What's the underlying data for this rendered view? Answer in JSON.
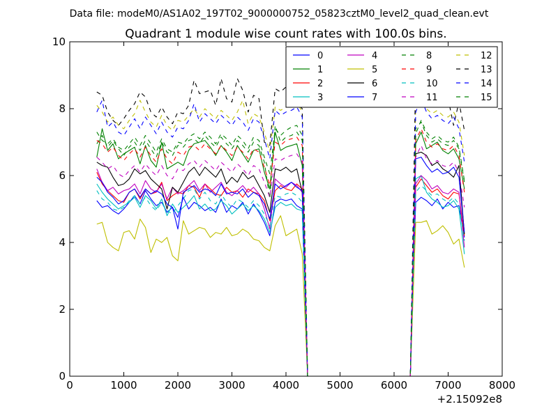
{
  "chart_data": {
    "type": "line",
    "suptitle": "Data file: modeM0/AS1A02_197T02_9000000752_05823cztM0_level2_quad_clean.evt",
    "title": "Quadrant 1 module wise count rates with 100.0s bins.",
    "xlabel": "",
    "ylabel": "",
    "x_offset_label": "+2.15092e8",
    "xlim": [
      0,
      8000
    ],
    "ylim": [
      0,
      10
    ],
    "xticks": [
      0,
      1000,
      2000,
      3000,
      4000,
      5000,
      6000,
      7000,
      8000
    ],
    "xtick_labels": [
      "0",
      "1000",
      "2000",
      "3000",
      "4000",
      "5000",
      "6000",
      "7000",
      "8000"
    ],
    "yticks": [
      0,
      2,
      4,
      6,
      8,
      10
    ],
    "ytick_labels": [
      "0",
      "2",
      "4",
      "6",
      "8",
      "10"
    ],
    "legend_position": "top-right",
    "x": [
      500,
      600,
      700,
      800,
      900,
      1000,
      1100,
      1200,
      1300,
      1400,
      1500,
      1600,
      1700,
      1800,
      1900,
      2000,
      2100,
      2200,
      2300,
      2400,
      2500,
      2600,
      2700,
      2800,
      2900,
      3000,
      3100,
      3200,
      3300,
      3400,
      3500,
      3600,
      3700,
      3800,
      3900,
      4000,
      4100,
      4200,
      4300,
      4400,
      4450,
      6250,
      6300,
      6400,
      6500,
      6600,
      6700,
      6800,
      6900,
      7000,
      7100,
      7200,
      7300
    ],
    "series": [
      {
        "name": "0",
        "color": "#0000ff",
        "dash": "solid",
        "values": [
          5.25,
          5.05,
          5.1,
          4.95,
          4.85,
          5.0,
          5.2,
          5.4,
          5.15,
          5.55,
          5.3,
          5.1,
          5.2,
          4.9,
          5.05,
          4.75,
          5.35,
          5.0,
          5.2,
          5.1,
          4.95,
          5.05,
          4.9,
          5.3,
          4.9,
          5.1,
          5.0,
          5.2,
          4.85,
          5.15,
          4.9,
          4.6,
          4.2,
          5.2,
          5.3,
          5.25,
          5.3,
          5.1,
          5.0,
          0.0,
          0.0,
          0.0,
          0.0,
          5.2,
          5.35,
          5.25,
          5.1,
          5.3,
          5.0,
          5.2,
          5.05,
          5.1,
          4.15
        ]
      },
      {
        "name": "1",
        "color": "#008000",
        "dash": "solid",
        "values": [
          6.55,
          7.4,
          6.75,
          6.95,
          6.5,
          6.65,
          6.75,
          6.85,
          6.35,
          6.9,
          6.45,
          6.25,
          7.0,
          6.2,
          6.3,
          6.4,
          6.3,
          6.75,
          6.95,
          7.0,
          7.05,
          6.85,
          6.6,
          6.9,
          6.7,
          6.45,
          6.9,
          6.65,
          6.4,
          6.75,
          6.8,
          6.1,
          5.6,
          7.3,
          6.75,
          6.85,
          6.9,
          6.95,
          6.3,
          0.0,
          0.0,
          0.0,
          0.0,
          6.95,
          7.3,
          6.8,
          6.9,
          7.0,
          6.75,
          6.65,
          6.8,
          6.5,
          5.6
        ]
      },
      {
        "name": "2",
        "color": "#ff0000",
        "dash": "solid",
        "values": [
          6.1,
          5.75,
          5.55,
          5.4,
          5.25,
          5.2,
          5.5,
          5.6,
          5.3,
          5.6,
          5.45,
          5.5,
          5.8,
          5.25,
          5.4,
          5.5,
          5.45,
          5.7,
          5.65,
          5.35,
          5.75,
          5.6,
          5.45,
          5.4,
          5.65,
          5.5,
          5.55,
          5.35,
          5.6,
          5.5,
          5.45,
          5.25,
          4.65,
          5.55,
          5.7,
          5.6,
          5.55,
          5.75,
          5.6,
          0.0,
          0.0,
          0.0,
          0.0,
          5.65,
          5.9,
          5.7,
          5.5,
          5.6,
          5.4,
          5.3,
          5.5,
          5.45,
          4.2
        ]
      },
      {
        "name": "3",
        "color": "#00bfbf",
        "dash": "solid",
        "values": [
          5.75,
          5.5,
          5.3,
          5.15,
          5.0,
          5.1,
          5.2,
          5.35,
          5.05,
          5.4,
          5.25,
          5.0,
          5.3,
          4.8,
          5.15,
          4.9,
          5.05,
          5.2,
          5.4,
          5.0,
          5.15,
          4.95,
          5.0,
          5.25,
          5.1,
          4.85,
          5.0,
          5.15,
          4.95,
          5.1,
          4.95,
          4.7,
          4.3,
          5.05,
          5.2,
          5.1,
          5.15,
          5.0,
          4.95,
          0.0,
          0.0,
          0.0,
          0.0,
          5.9,
          6.0,
          5.5,
          5.3,
          5.2,
          5.05,
          5.1,
          5.25,
          5.0,
          3.65
        ]
      },
      {
        "name": "4",
        "color": "#bf00bf",
        "dash": "solid",
        "values": [
          6.2,
          5.8,
          5.55,
          5.65,
          5.45,
          5.55,
          5.6,
          5.75,
          5.45,
          5.85,
          5.6,
          5.5,
          5.75,
          5.3,
          5.65,
          5.45,
          5.55,
          5.7,
          5.85,
          5.55,
          5.75,
          5.5,
          5.65,
          5.8,
          5.5,
          5.4,
          5.55,
          5.7,
          5.5,
          5.65,
          5.45,
          5.0,
          4.4,
          5.9,
          5.75,
          5.65,
          5.8,
          5.7,
          5.5,
          0.0,
          0.0,
          0.0,
          0.0,
          5.75,
          6.0,
          5.85,
          5.6,
          5.7,
          5.5,
          5.45,
          5.6,
          5.5,
          3.85
        ]
      },
      {
        "name": "5",
        "color": "#bfbf00",
        "dash": "solid",
        "values": [
          4.55,
          4.6,
          4.0,
          3.85,
          3.75,
          4.3,
          4.35,
          4.1,
          4.7,
          4.45,
          3.7,
          4.1,
          4.0,
          4.15,
          3.6,
          3.45,
          4.65,
          4.25,
          4.35,
          4.45,
          4.4,
          4.15,
          4.3,
          4.25,
          4.45,
          4.2,
          4.25,
          4.4,
          4.3,
          4.1,
          4.05,
          3.85,
          3.75,
          4.5,
          4.8,
          4.2,
          4.3,
          4.4,
          3.65,
          0.0,
          0.0,
          0.0,
          0.0,
          4.6,
          4.6,
          4.65,
          4.25,
          4.35,
          4.5,
          4.3,
          3.95,
          4.1,
          3.25
        ]
      },
      {
        "name": "6",
        "color": "#000000",
        "dash": "solid",
        "values": [
          6.4,
          6.3,
          6.25,
          5.95,
          5.7,
          5.75,
          5.9,
          6.2,
          6.05,
          6.15,
          5.9,
          5.75,
          5.6,
          5.0,
          5.65,
          5.5,
          5.8,
          6.1,
          6.25,
          6.0,
          6.25,
          6.1,
          5.95,
          6.2,
          5.75,
          5.95,
          5.8,
          6.1,
          5.9,
          6.0,
          5.7,
          5.4,
          4.9,
          6.2,
          6.15,
          6.25,
          6.1,
          6.2,
          5.5,
          0.0,
          0.0,
          0.0,
          0.0,
          6.65,
          6.7,
          6.6,
          6.3,
          6.4,
          6.2,
          6.1,
          5.95,
          6.3,
          4.25
        ]
      },
      {
        "name": "7",
        "color": "#0000ff",
        "dash": "solid",
        "values": [
          5.95,
          5.8,
          5.5,
          5.35,
          5.15,
          5.25,
          5.5,
          5.6,
          5.35,
          5.6,
          5.45,
          5.55,
          5.45,
          5.15,
          5.05,
          4.4,
          5.5,
          5.6,
          5.7,
          5.5,
          5.6,
          5.55,
          5.4,
          5.75,
          5.45,
          5.5,
          5.45,
          5.6,
          5.35,
          5.5,
          5.4,
          5.15,
          4.7,
          5.75,
          5.6,
          5.7,
          5.8,
          5.65,
          5.55,
          0.0,
          0.0,
          0.0,
          0.0,
          6.5,
          6.55,
          6.3,
          6.1,
          6.2,
          6.05,
          6.1,
          6.25,
          5.95,
          4.3
        ]
      },
      {
        "name": "8",
        "color": "#008000",
        "dash": "dashed",
        "values": [
          6.95,
          7.2,
          6.85,
          7.05,
          6.8,
          6.6,
          6.85,
          7.0,
          6.75,
          7.05,
          6.8,
          6.55,
          7.0,
          6.7,
          6.6,
          6.9,
          6.85,
          7.05,
          7.1,
          6.95,
          7.2,
          7.0,
          6.85,
          7.15,
          6.95,
          6.8,
          7.05,
          6.9,
          6.7,
          7.0,
          6.9,
          6.4,
          5.3,
          7.5,
          7.0,
          7.15,
          7.2,
          7.3,
          7.05,
          0.0,
          0.0,
          0.0,
          0.0,
          7.4,
          7.6,
          7.2,
          7.0,
          7.1,
          6.95,
          6.9,
          7.05,
          6.8,
          5.8
        ]
      },
      {
        "name": "9",
        "color": "#ff0000",
        "dash": "dashed",
        "values": [
          7.05,
          6.95,
          6.7,
          6.85,
          6.6,
          6.45,
          6.65,
          6.8,
          6.55,
          6.85,
          6.6,
          6.4,
          6.8,
          6.5,
          6.35,
          6.7,
          6.6,
          6.85,
          6.9,
          6.75,
          6.95,
          6.8,
          6.65,
          6.9,
          6.75,
          6.6,
          6.85,
          6.7,
          6.5,
          6.8,
          6.7,
          6.25,
          5.7,
          7.0,
          6.9,
          7.05,
          7.1,
          7.15,
          6.9,
          0.0,
          0.0,
          0.0,
          0.0,
          7.05,
          7.4,
          7.0,
          6.85,
          6.95,
          6.8,
          6.75,
          6.9,
          6.6,
          5.5
        ]
      },
      {
        "name": "10",
        "color": "#00bfbf",
        "dash": "dashed",
        "values": [
          5.55,
          5.3,
          5.2,
          5.0,
          4.95,
          5.05,
          5.25,
          5.4,
          5.15,
          5.35,
          5.1,
          4.95,
          5.2,
          4.95,
          4.85,
          5.1,
          5.3,
          5.55,
          5.6,
          5.3,
          5.5,
          5.25,
          5.15,
          5.45,
          5.2,
          5.05,
          5.3,
          5.2,
          5.05,
          5.25,
          5.1,
          4.85,
          4.5,
          5.4,
          5.35,
          5.45,
          5.5,
          5.4,
          5.2,
          0.0,
          0.0,
          0.0,
          0.0,
          5.5,
          5.7,
          5.55,
          5.4,
          5.45,
          5.3,
          5.2,
          5.35,
          5.15,
          4.05
        ]
      },
      {
        "name": "11",
        "color": "#bf00bf",
        "dash": "dashed",
        "values": [
          6.55,
          6.4,
          6.2,
          6.3,
          6.05,
          5.95,
          6.15,
          6.3,
          6.1,
          6.35,
          6.15,
          6.0,
          6.3,
          6.0,
          5.9,
          6.2,
          6.15,
          6.35,
          6.45,
          6.25,
          6.45,
          6.3,
          6.15,
          6.4,
          6.25,
          6.1,
          6.35,
          6.2,
          6.0,
          6.3,
          6.2,
          5.8,
          5.35,
          6.5,
          6.45,
          6.55,
          6.6,
          6.65,
          6.4,
          0.0,
          0.0,
          0.0,
          0.0,
          6.55,
          6.9,
          6.5,
          6.35,
          6.45,
          6.3,
          6.25,
          6.4,
          6.1,
          5.05
        ]
      },
      {
        "name": "12",
        "color": "#bfbf00",
        "dash": "dashed",
        "values": [
          8.1,
          7.9,
          7.6,
          7.75,
          7.5,
          7.4,
          7.65,
          7.85,
          8.25,
          7.9,
          7.6,
          7.45,
          7.8,
          7.5,
          7.35,
          7.65,
          7.6,
          7.8,
          8.0,
          7.75,
          8.0,
          7.85,
          7.7,
          7.95,
          7.8,
          7.65,
          7.9,
          8.25,
          7.55,
          7.85,
          7.75,
          7.3,
          6.7,
          8.05,
          7.95,
          8.05,
          8.1,
          8.2,
          7.9,
          0.0,
          0.0,
          0.0,
          0.0,
          8.05,
          8.5,
          8.0,
          7.85,
          7.95,
          7.8,
          7.75,
          7.9,
          7.6,
          6.6
        ]
      },
      {
        "name": "13",
        "color": "#000000",
        "dash": "dashed",
        "values": [
          8.5,
          8.4,
          7.9,
          7.65,
          7.5,
          7.7,
          7.95,
          8.15,
          8.5,
          8.35,
          7.9,
          7.75,
          8.05,
          7.75,
          7.55,
          7.9,
          7.85,
          8.1,
          8.85,
          8.45,
          8.5,
          8.55,
          8.1,
          8.9,
          8.3,
          8.2,
          8.9,
          8.55,
          7.9,
          8.4,
          8.3,
          7.0,
          6.9,
          8.6,
          8.5,
          8.65,
          8.1,
          8.15,
          8.0,
          0.0,
          0.0,
          0.0,
          0.0,
          9.1,
          9.0,
          8.7,
          8.45,
          8.6,
          8.4,
          8.3,
          7.5,
          8.2,
          7.35
        ]
      },
      {
        "name": "14",
        "color": "#0000ff",
        "dash": "dashed",
        "values": [
          7.9,
          8.25,
          7.45,
          7.6,
          7.3,
          7.2,
          7.45,
          7.7,
          7.4,
          7.75,
          7.5,
          7.25,
          7.6,
          7.3,
          7.15,
          7.45,
          7.4,
          7.65,
          8.15,
          7.6,
          7.85,
          7.7,
          7.55,
          7.8,
          7.65,
          7.5,
          7.75,
          7.6,
          7.35,
          7.7,
          7.6,
          7.1,
          6.5,
          7.95,
          7.8,
          7.9,
          7.95,
          8.05,
          7.75,
          0.0,
          0.0,
          0.0,
          0.0,
          7.9,
          8.3,
          7.9,
          7.7,
          7.8,
          7.65,
          7.55,
          7.75,
          7.4,
          6.4
        ]
      },
      {
        "name": "15",
        "color": "#008000",
        "dash": "dashed",
        "values": [
          7.3,
          7.05,
          6.95,
          7.1,
          6.85,
          6.75,
          6.95,
          7.15,
          6.9,
          7.2,
          6.95,
          6.7,
          7.1,
          6.8,
          6.7,
          7.0,
          6.95,
          7.15,
          7.25,
          7.1,
          7.3,
          7.15,
          6.95,
          7.25,
          7.1,
          6.9,
          7.2,
          7.05,
          6.8,
          7.15,
          7.05,
          6.55,
          6.05,
          7.4,
          7.2,
          7.35,
          7.45,
          7.5,
          7.2,
          0.0,
          0.0,
          0.0,
          0.0,
          7.25,
          7.65,
          7.3,
          7.1,
          7.2,
          7.05,
          7.0,
          7.15,
          6.85,
          5.85
        ]
      }
    ]
  }
}
